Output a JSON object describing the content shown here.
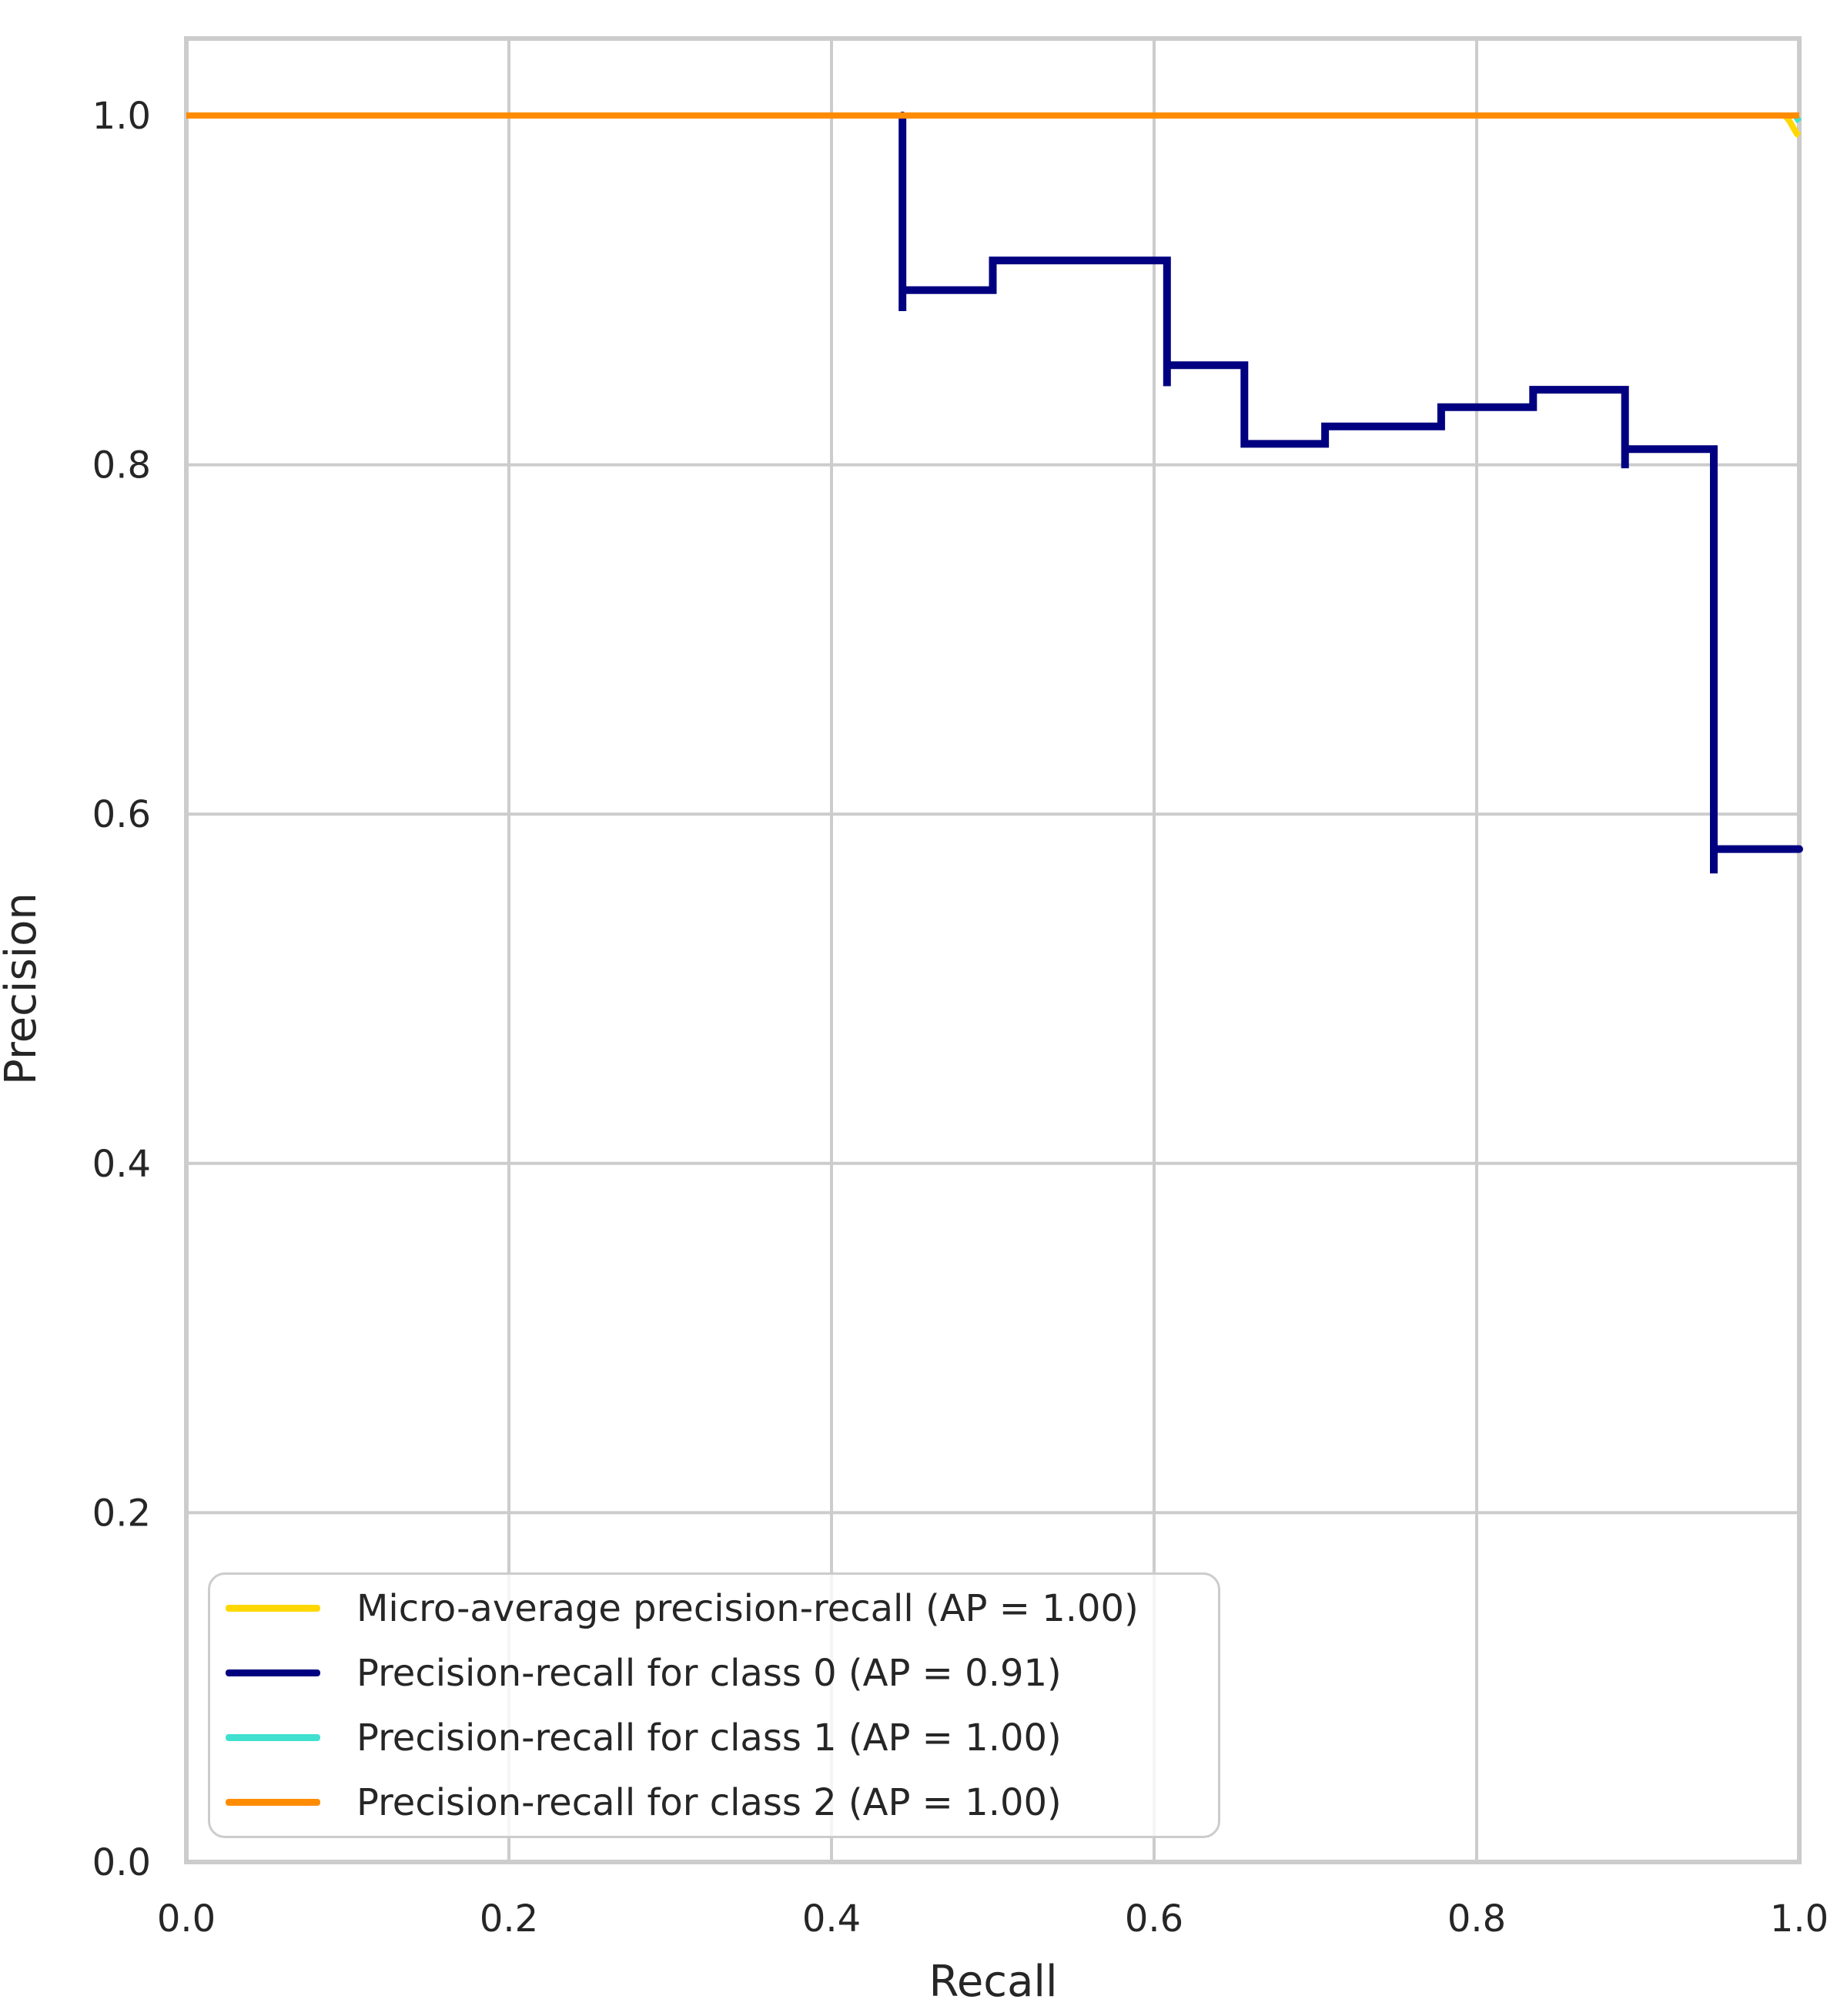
{
  "axes": {
    "xlabel": "Recall",
    "ylabel": "Precision",
    "x_ticks": [
      "0.0",
      "0.2",
      "0.4",
      "0.6",
      "0.8",
      "1.0"
    ],
    "y_ticks": [
      "0.0",
      "0.2",
      "0.4",
      "0.6",
      "0.8",
      "1.0"
    ],
    "grid_color": "#cccccc",
    "frame_color": "#cccccc",
    "tick_text_color": "#262626"
  },
  "legend": {
    "position": "lower left",
    "entries": [
      {
        "label": "Micro-average precision-recall (AP = 1.00)",
        "color": "#FFD700",
        "swatch": "gold-line-swatch"
      },
      {
        "label": "Precision-recall for class 0 (AP = 0.91)",
        "color": "#000080",
        "swatch": "navy-line-swatch"
      },
      {
        "label": "Precision-recall for class 1 (AP = 1.00)",
        "color": "#40E0D0",
        "swatch": "turquoise-line-swatch"
      },
      {
        "label": "Precision-recall for class 2 (AP = 1.00)",
        "color": "#FF8C00",
        "swatch": "darkorange-line-swatch"
      }
    ]
  },
  "chart_data": {
    "type": "line",
    "title": "",
    "xlabel": "Recall",
    "ylabel": "Precision",
    "xlim": [
      0.0,
      1.0
    ],
    "ylim": [
      0.0,
      1.05
    ],
    "grid": true,
    "legend_position": "lower left",
    "series": [
      {
        "name": "Micro-average precision-recall (AP = 1.00)",
        "color": "#FFD700",
        "ap": 1.0,
        "points": [
          [
            0.0,
            1.0
          ],
          [
            0.991,
            1.0
          ],
          [
            0.9935,
            0.9975
          ],
          [
            0.9985,
            0.9895
          ],
          [
            1.0,
            0.9885
          ]
        ]
      },
      {
        "name": "Precision-recall for class 0 (AP = 0.91)",
        "color": "#000080",
        "ap": 0.91,
        "points": [
          [
            0.444,
            1.0
          ],
          [
            0.444,
            0.888
          ],
          [
            0.444,
            0.9
          ],
          [
            0.5,
            0.9
          ],
          [
            0.5,
            0.917
          ],
          [
            0.608,
            0.917
          ],
          [
            0.608,
            0.845
          ],
          [
            0.608,
            0.857
          ],
          [
            0.656,
            0.857
          ],
          [
            0.656,
            0.812
          ],
          [
            0.706,
            0.812
          ],
          [
            0.706,
            0.822
          ],
          [
            0.778,
            0.822
          ],
          [
            0.778,
            0.833
          ],
          [
            0.835,
            0.833
          ],
          [
            0.835,
            0.843
          ],
          [
            0.892,
            0.843
          ],
          [
            0.892,
            0.798
          ],
          [
            0.892,
            0.809
          ],
          [
            0.947,
            0.809
          ],
          [
            0.947,
            0.566
          ],
          [
            0.947,
            0.58
          ],
          [
            1.0,
            0.58
          ]
        ]
      },
      {
        "name": "Precision-recall for class 1 (AP = 1.00)",
        "color": "#40E0D0",
        "ap": 1.0,
        "points": [
          [
            0.0,
            1.0
          ],
          [
            0.9975,
            1.0
          ],
          [
            1.0,
            0.9965
          ]
        ]
      },
      {
        "name": "Precision-recall for class 2 (AP = 1.00)",
        "color": "#FF8C00",
        "ap": 1.0,
        "points": [
          [
            0.0,
            1.0
          ],
          [
            1.0,
            1.0
          ]
        ]
      }
    ]
  }
}
